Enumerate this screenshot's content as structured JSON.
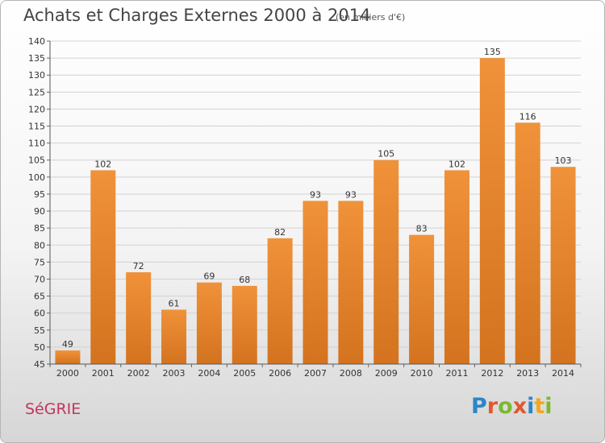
{
  "chart_data": {
    "type": "bar",
    "title": "Achats et Charges Externes 2000 à 2014",
    "subtitle": "(en milliers d'€)",
    "categories": [
      "2000",
      "2001",
      "2002",
      "2003",
      "2004",
      "2005",
      "2006",
      "2007",
      "2008",
      "2009",
      "2010",
      "2011",
      "2012",
      "2013",
      "2014"
    ],
    "values": [
      49,
      102,
      72,
      61,
      69,
      68,
      82,
      93,
      93,
      105,
      83,
      102,
      135,
      116,
      103
    ],
    "ylim": [
      45,
      140
    ],
    "yticks": [
      45,
      50,
      55,
      60,
      65,
      70,
      75,
      80,
      85,
      90,
      95,
      100,
      105,
      110,
      115,
      120,
      125,
      130,
      135,
      140
    ],
    "grid": true,
    "bar_color": "#f0923a",
    "bar_color_dark": "#d4731f"
  },
  "place_name": "SéGRIE",
  "logo": {
    "letters": [
      "P",
      "r",
      "o",
      "x",
      "i",
      "t",
      "i"
    ],
    "colors": [
      "#2a86c8",
      "#e0582d",
      "#7bb92f",
      "#e0582d",
      "#2a86c8",
      "#f2a81d",
      "#7bb92f"
    ]
  }
}
